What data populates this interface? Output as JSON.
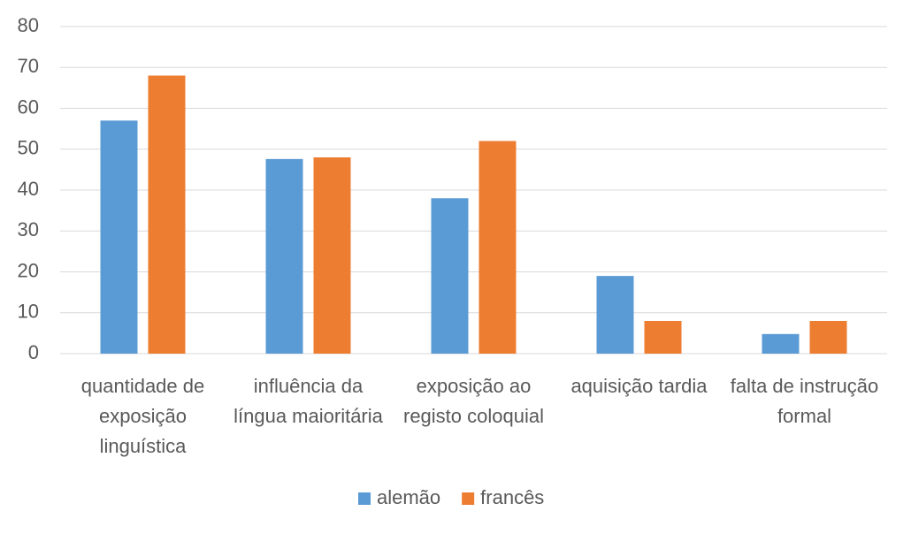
{
  "chart_data": {
    "type": "bar",
    "categories": [
      "quantidade de exposição linguística",
      "influência da língua maioritária",
      "exposição ao registo coloquial",
      "aquisição tardia",
      "falta de instrução formal"
    ],
    "series": [
      {
        "name": "alemão",
        "color": "#5b9bd5",
        "values": [
          57,
          47.6,
          38,
          19,
          4.8
        ]
      },
      {
        "name": "francês",
        "color": "#ed7d31",
        "values": [
          68,
          48,
          52,
          8,
          8
        ]
      }
    ],
    "ylim": [
      0,
      80
    ],
    "yticks": [
      0,
      10,
      20,
      30,
      40,
      50,
      60,
      70,
      80
    ],
    "grid": true,
    "legend": "bottom"
  }
}
